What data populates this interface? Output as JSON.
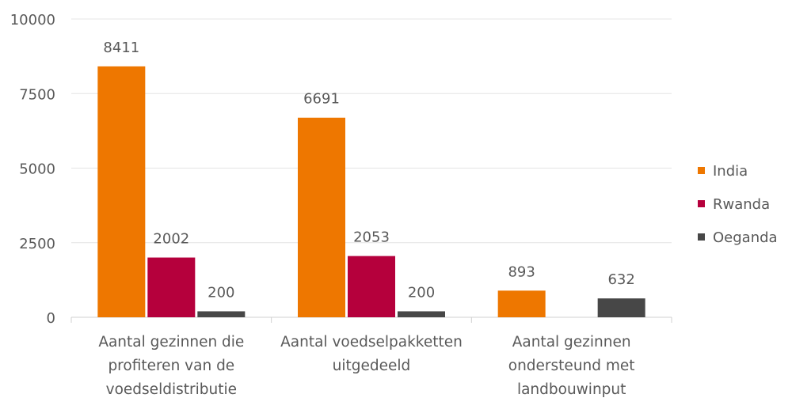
{
  "chart_data": {
    "type": "bar",
    "title": "",
    "xlabel": "",
    "ylabel": "",
    "ylim": [
      0,
      10000
    ],
    "yticks": [
      "0",
      "2500",
      "5000",
      "7500",
      "10000"
    ],
    "grid": true,
    "legend_position": "right",
    "categories": [
      [
        "Aantal gezinnen die",
        "profiteren van de",
        "voedseldistributie"
      ],
      [
        "Aantal voedselpakketten",
        "uitgedeeld"
      ],
      [
        "Aantal gezinnen",
        "ondersteund met",
        "landbouwinput"
      ]
    ],
    "series": [
      {
        "name": "India",
        "color": "#EE7700",
        "values": [
          8411,
          6691,
          893
        ],
        "labels": [
          "8411",
          "6691",
          "893"
        ]
      },
      {
        "name": "Rwanda",
        "color": "#B5003C",
        "values": [
          2002,
          2053,
          null
        ],
        "labels": [
          "2002",
          "2053",
          null
        ]
      },
      {
        "name": "Oeganda",
        "color": "#474747",
        "values": [
          200,
          200,
          632
        ],
        "labels": [
          "200",
          "200",
          "632"
        ]
      }
    ]
  }
}
